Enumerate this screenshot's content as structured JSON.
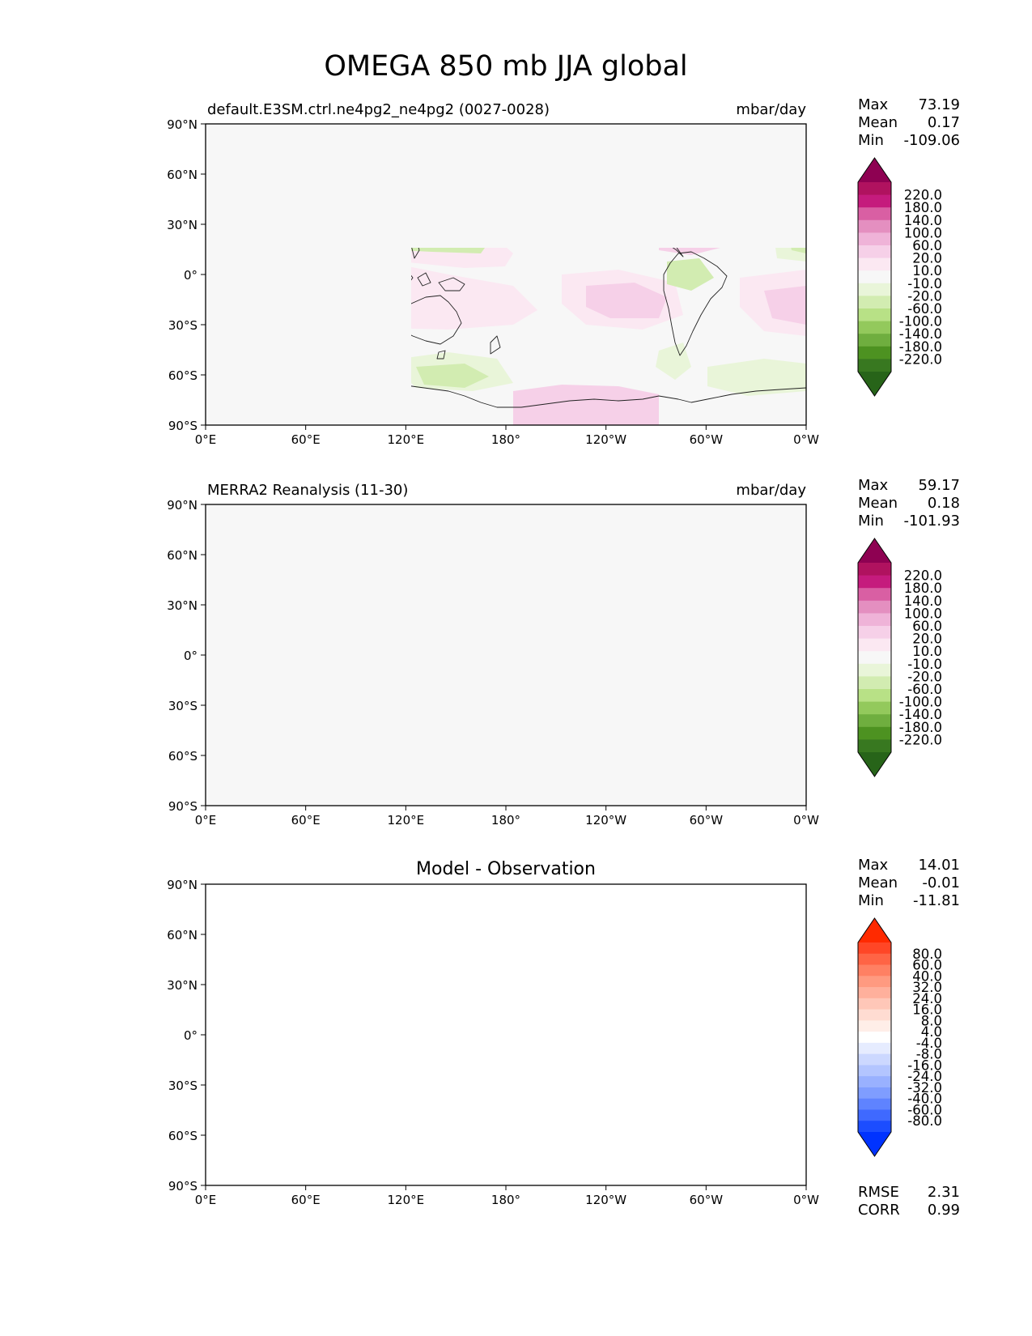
{
  "figure": {
    "title": "OMEGA 850 mb JJA global"
  },
  "axes": {
    "lat_ticks": [
      "90°N",
      "60°N",
      "30°N",
      "0°",
      "30°S",
      "60°S",
      "90°S"
    ],
    "lon_ticks": [
      "0°E",
      "60°E",
      "120°E",
      "180°",
      "120°W",
      "60°W",
      "0°W"
    ]
  },
  "panels": [
    {
      "id": "test",
      "left_title": "default.E3SM.ctrl.ne4pg2_ne4pg2 (0027-0028)",
      "center_title": "",
      "right_title": "mbar/day",
      "stats": [
        {
          "label": "Max",
          "value": "73.19"
        },
        {
          "label": "Mean",
          "value": "0.17"
        },
        {
          "label": "Min",
          "value": "-109.06"
        }
      ],
      "colorbar": "omega"
    },
    {
      "id": "reference",
      "left_title": "MERRA2 Reanalysis (11-30)",
      "center_title": "",
      "right_title": "mbar/day",
      "stats": [
        {
          "label": "Max",
          "value": "59.17"
        },
        {
          "label": "Mean",
          "value": "0.18"
        },
        {
          "label": "Min",
          "value": "-101.93"
        }
      ],
      "colorbar": "omega"
    },
    {
      "id": "difference",
      "left_title": "",
      "center_title": "Model - Observation",
      "right_title": "",
      "stats": [
        {
          "label": "Max",
          "value": "14.01"
        },
        {
          "label": "Mean",
          "value": "-0.01"
        },
        {
          "label": "Min",
          "value": "-11.81"
        }
      ],
      "colorbar": "diff",
      "extra_stats": [
        {
          "label": "RMSE",
          "value": "2.31"
        },
        {
          "label": "CORR",
          "value": "0.99"
        }
      ]
    }
  ],
  "colorbars": {
    "omega": {
      "labels": [
        "220.0",
        "180.0",
        "140.0",
        "100.0",
        "60.0",
        "20.0",
        "10.0",
        "-10.0",
        "-20.0",
        "-60.0",
        "-100.0",
        "-140.0",
        "-180.0",
        "-220.0"
      ],
      "colors": [
        "#8e0152",
        "#b0125f",
        "#c51b7d",
        "#d95fa3",
        "#e48fc0",
        "#efb3d8",
        "#f6d0e8",
        "#fbe8f2",
        "#f7f7f7",
        "#e9f5d9",
        "#d2ecb1",
        "#b8e186",
        "#93c95c",
        "#6fae3f",
        "#4d9221",
        "#387820",
        "#276419"
      ]
    },
    "diff": {
      "labels": [
        "80.0",
        "60.0",
        "40.0",
        "32.0",
        "24.0",
        "16.0",
        "8.0",
        "4.0",
        "-4.0",
        "-8.0",
        "-16.0",
        "-24.0",
        "-32.0",
        "-40.0",
        "-60.0",
        "-80.0"
      ],
      "colors": [
        "#ff2a00",
        "#ff4626",
        "#ff6445",
        "#ff8063",
        "#ff9a80",
        "#ffb09c",
        "#ffc7b8",
        "#ffdcd2",
        "#ffeee8",
        "#ffffff",
        "#e6ecff",
        "#ccd8ff",
        "#b3c5ff",
        "#99b1ff",
        "#7f9dff",
        "#5f83ff",
        "#3f69ff",
        "#1c4dff",
        "#0033ff"
      ]
    }
  }
}
